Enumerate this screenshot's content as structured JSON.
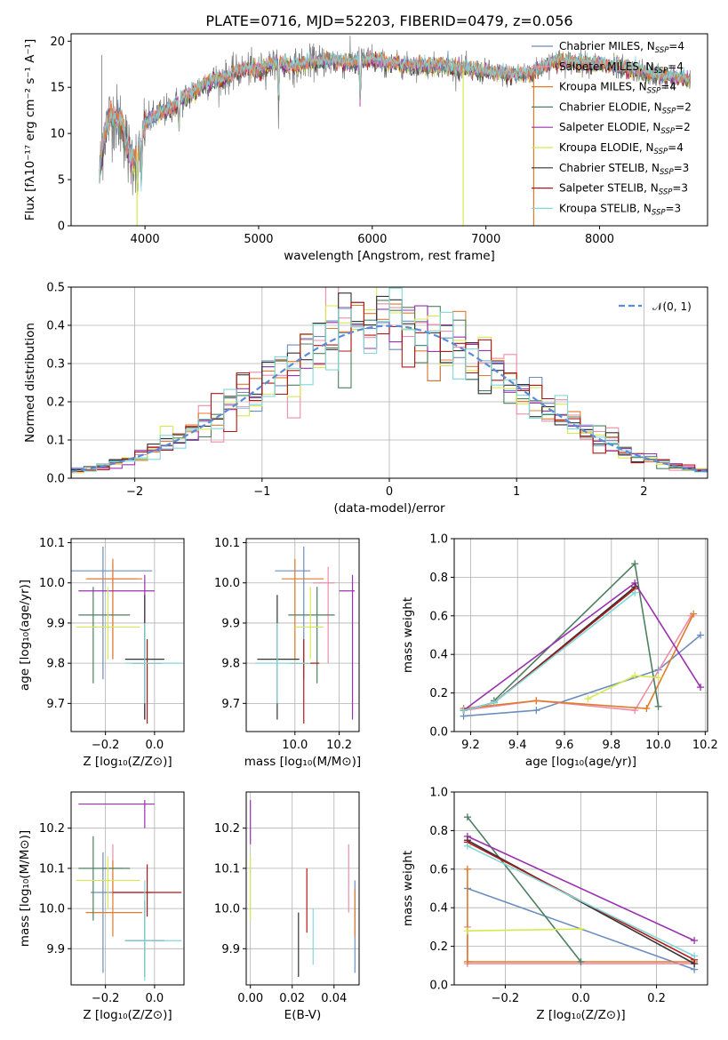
{
  "title": "PLATE=0716, MJD=52203, FIBERID=0479, z=0.056",
  "colors": {
    "Chabrier MILES": "#6c8ebf",
    "Salpeter MILES": "#ec8ea8",
    "Kroupa MILES": "#e07b2c",
    "Chabrier ELODIE": "#4c8060",
    "Salpeter ELODIE": "#9b30b0",
    "Kroupa ELODIE": "#d8e850",
    "Chabrier STELIB": "#333333",
    "Salpeter STELIB": "#b01818",
    "Kroupa STELIB": "#80d8d8"
  },
  "chart_data": [
    {
      "id": "spectrum",
      "type": "line",
      "title": "PLATE=0716, MJD=52203, FIBERID=0479, z=0.056",
      "xlabel": "wavelength [Angstrom, rest frame]",
      "ylabel": "Flux [fλ10⁻¹⁷ erg cm⁻² s⁻¹ A⁻¹]",
      "xlim": [
        3350,
        8950
      ],
      "ylim": [
        0,
        20.8
      ],
      "xticks": [
        "4000",
        "5000",
        "6000",
        "7000",
        "8000"
      ],
      "yticks": [
        "0",
        "5",
        "10",
        "15",
        "20"
      ],
      "legend_position": "upper-right",
      "legend": [
        "Chabrier MILES, N_SSP=4",
        "Salpeter MILES, N_SSP=4",
        "Kroupa MILES, N_SSP=4",
        "Chabrier ELODIE, N_SSP=2",
        "Salpeter ELODIE, N_SSP=2",
        "Kroupa ELODIE, N_SSP=4",
        "Chabrier STELIB, N_SSP=3",
        "Salpeter STELIB, N_SSP=3",
        "Kroupa STELIB, N_SSP=3"
      ],
      "continuum": {
        "x": [
          3600,
          3640,
          3700,
          3800,
          3850,
          3900,
          3950,
          4000,
          4100,
          4200,
          4300,
          4400,
          4500,
          4600,
          4700,
          4800,
          4900,
          5000,
          5100,
          5200,
          5300,
          5400,
          5500,
          5600,
          5800,
          6000,
          6200,
          6400,
          6600,
          6800,
          7000,
          7200,
          7400,
          7600,
          7800,
          8000,
          8200,
          8400,
          8600,
          8800
        ],
        "y": [
          5.5,
          10,
          12,
          11,
          8,
          7,
          8.5,
          11,
          12,
          12.5,
          13.5,
          14.2,
          15.2,
          15.8,
          16,
          16.6,
          17,
          16.8,
          17.5,
          17.6,
          17.2,
          17.6,
          17.8,
          17.9,
          17.7,
          18,
          17.5,
          17.3,
          17.4,
          17,
          16.7,
          16.3,
          16.6,
          17.9,
          17.7,
          17.5,
          17.1,
          16.6,
          16.2,
          15.8
        ]
      },
      "absorption_features": [
        {
          "x": 3933,
          "y": 3.5
        },
        {
          "x": 3968,
          "y": 4.5
        },
        {
          "x": 4300,
          "y": 10.5
        },
        {
          "x": 5175,
          "y": 13.5
        },
        {
          "x": 5893,
          "y": 13.5
        }
      ],
      "model_spikes": [
        {
          "series": "Kroupa ELODIE",
          "x": 3930,
          "y": 0
        },
        {
          "series": "Kroupa ELODIE",
          "x": 6800,
          "y": 0
        },
        {
          "series": "Kroupa MILES",
          "x": 7420,
          "y": 0
        }
      ]
    },
    {
      "id": "residuals",
      "type": "line",
      "xlabel": "(data-model)/error",
      "ylabel": "Normed distribution",
      "xlim": [
        -2.5,
        2.5
      ],
      "ylim": [
        0,
        0.5
      ],
      "xticks": [
        "−2",
        "−1",
        "0",
        "1",
        "2"
      ],
      "yticks": [
        "0.0",
        "0.1",
        "0.2",
        "0.3",
        "0.4",
        "0.5"
      ],
      "bin_width": 0.1,
      "legend_position": "upper-right",
      "legend": [
        "𝒩(0, 1)"
      ],
      "gaussian": {
        "mean": 0,
        "sigma": 1
      }
    },
    {
      "id": "age_vs_Z",
      "type": "scatter",
      "xlabel": "Z [log₁₀(Z/Z⊙)]",
      "ylabel": "age  [log₁₀(age/yr)]",
      "xlim": [
        -0.34,
        0.12
      ],
      "ylim": [
        9.63,
        10.11
      ],
      "xticks": [
        "−0.2",
        "0.0"
      ],
      "yticks": [
        "9.7",
        "9.8",
        "9.9",
        "10.0",
        "10.1"
      ],
      "points": [
        {
          "series": "Chabrier MILES",
          "x": -0.21,
          "y": 10.03,
          "xerr": [
            0.2,
            0.2
          ],
          "yerr": [
            0.27,
            0.06
          ]
        },
        {
          "series": "Salpeter MILES",
          "x": -0.17,
          "y": 10.01,
          "xerr": [
            0.1,
            0.1
          ],
          "yerr": [
            0.2,
            0.04
          ]
        },
        {
          "series": "Kroupa MILES",
          "x": -0.17,
          "y": 10.01,
          "xerr": [
            0.11,
            0.12
          ],
          "yerr": [
            0.2,
            0.05
          ]
        },
        {
          "series": "Chabrier ELODIE",
          "x": -0.25,
          "y": 9.92,
          "xerr": [
            0.06,
            0.15
          ],
          "yerr": [
            0.17,
            0.07
          ]
        },
        {
          "series": "Salpeter ELODIE",
          "x": -0.04,
          "y": 9.98,
          "xerr": [
            0.27,
            0.04
          ],
          "yerr": [
            0.32,
            0.04
          ]
        },
        {
          "series": "Kroupa ELODIE",
          "x": -0.19,
          "y": 9.89,
          "xerr": [
            0.13,
            0.13
          ],
          "yerr": [
            0.08,
            0.1
          ]
        },
        {
          "series": "Chabrier STELIB",
          "x": -0.04,
          "y": 9.81,
          "xerr": [
            0.08,
            0.08
          ],
          "yerr": [
            0.15,
            0.16
          ]
        },
        {
          "series": "Salpeter STELIB",
          "x": -0.03,
          "y": 9.8,
          "xerr": [
            0.06,
            0.06
          ],
          "yerr": [
            0.15,
            0.06
          ]
        },
        {
          "series": "Kroupa STELIB",
          "x": -0.04,
          "y": 9.8,
          "xerr": [
            0.08,
            0.15
          ],
          "yerr": [
            0.1,
            0.1
          ]
        }
      ]
    },
    {
      "id": "age_vs_mass",
      "type": "scatter",
      "xlabel": "mass [log₁₀(M/M⊙)]",
      "ylabel": "",
      "xlim": [
        9.78,
        10.29
      ],
      "ylim": [
        9.63,
        10.11
      ],
      "xticks": [
        "10.0",
        "10.2"
      ],
      "yticks": [
        "9.7",
        "9.8",
        "9.9",
        "10.0",
        "10.1"
      ],
      "points": [
        {
          "series": "Chabrier MILES",
          "x": 10.04,
          "y": 10.03,
          "xerr": [
            0.13,
            0.03
          ],
          "yerr": [
            0.27,
            0.06
          ]
        },
        {
          "series": "Salpeter MILES",
          "x": 10.15,
          "y": 10.0,
          "xerr": [
            0.07,
            0.03
          ],
          "yerr": [
            0.2,
            0.04
          ]
        },
        {
          "series": "Kroupa MILES",
          "x": 10.0,
          "y": 10.01,
          "xerr": [
            0.06,
            0.13
          ],
          "yerr": [
            0.2,
            0.05
          ]
        },
        {
          "series": "Chabrier ELODIE",
          "x": 10.1,
          "y": 9.92,
          "xerr": [
            0.13,
            0.08
          ],
          "yerr": [
            0.17,
            0.07
          ]
        },
        {
          "series": "Salpeter ELODIE",
          "x": 10.26,
          "y": 9.98,
          "xerr": [
            0.06,
            0.01
          ],
          "yerr": [
            0.32,
            0.04
          ]
        },
        {
          "series": "Kroupa ELODIE",
          "x": 10.07,
          "y": 9.89,
          "xerr": [
            0.07,
            0.06
          ],
          "yerr": [
            0.08,
            0.1
          ]
        },
        {
          "series": "Chabrier STELIB",
          "x": 9.92,
          "y": 9.81,
          "xerr": [
            0.09,
            0.1
          ],
          "yerr": [
            0.15,
            0.16
          ]
        },
        {
          "series": "Salpeter STELIB",
          "x": 10.04,
          "y": 9.8,
          "xerr": [
            0.06,
            0.07
          ],
          "yerr": [
            0.15,
            0.06
          ]
        },
        {
          "series": "Kroupa STELIB",
          "x": 9.92,
          "y": 9.8,
          "xerr": [
            0.1,
            0.15
          ],
          "yerr": [
            0.1,
            0.1
          ]
        }
      ]
    },
    {
      "id": "weight_vs_age",
      "type": "line",
      "xlabel": "age  [log₁₀(age/yr)]",
      "ylabel": "mass weight",
      "xlim": [
        9.13,
        10.21
      ],
      "ylim": [
        0,
        1
      ],
      "xticks": [
        "9.2",
        "9.4",
        "9.6",
        "9.8",
        "10.0",
        "10.2"
      ],
      "yticks": [
        "0.0",
        "0.2",
        "0.4",
        "0.6",
        "0.8",
        "1.0"
      ],
      "series": [
        {
          "name": "Chabrier MILES",
          "x": [
            9.17,
            9.48,
            10.0,
            10.18
          ],
          "y": [
            0.08,
            0.11,
            0.32,
            0.5
          ]
        },
        {
          "name": "Salpeter MILES",
          "x": [
            9.17,
            9.48,
            9.9,
            10.14
          ],
          "y": [
            0.11,
            0.16,
            0.11,
            0.6
          ]
        },
        {
          "name": "Kroupa MILES",
          "x": [
            9.17,
            9.48,
            9.95,
            10.15
          ],
          "y": [
            0.12,
            0.16,
            0.12,
            0.61
          ]
        },
        {
          "name": "Chabrier ELODIE",
          "x": [
            9.3,
            9.9,
            10.0
          ],
          "y": [
            0.16,
            0.87,
            0.13
          ]
        },
        {
          "name": "Salpeter ELODIE",
          "x": [
            9.17,
            9.9,
            10.18
          ],
          "y": [
            0.11,
            0.77,
            0.23
          ]
        },
        {
          "name": "Kroupa ELODIE",
          "x": [
            9.7,
            9.9,
            10.0
          ],
          "y": [
            0.17,
            0.29,
            0.28
          ]
        },
        {
          "name": "Chabrier STELIB",
          "x": [
            9.17,
            9.3,
            9.9
          ],
          "y": [
            0.11,
            0.15,
            0.75
          ]
        },
        {
          "name": "Salpeter STELIB",
          "x": [
            9.17,
            9.3,
            9.9
          ],
          "y": [
            0.11,
            0.15,
            0.74
          ]
        },
        {
          "name": "Kroupa STELIB",
          "x": [
            9.17,
            9.3,
            9.9
          ],
          "y": [
            0.11,
            0.15,
            0.72
          ]
        }
      ]
    },
    {
      "id": "mass_vs_Z",
      "type": "scatter",
      "xlabel": "Z [log₁₀(Z/Z⊙)]",
      "ylabel": "mass [log₁₀(M/M⊙)]",
      "xlim": [
        -0.34,
        0.12
      ],
      "ylim": [
        9.81,
        10.29
      ],
      "xticks": [
        "−0.2",
        "0.0"
      ],
      "yticks": [
        "9.9",
        "10.0",
        "10.1",
        "10.2"
      ],
      "points": [
        {
          "series": "Chabrier MILES",
          "x": -0.21,
          "y": 10.04,
          "xerr": [
            0.05,
            0.2
          ],
          "yerr": [
            0.2,
            0.1
          ]
        },
        {
          "series": "Salpeter MILES",
          "x": -0.17,
          "y": 10.1,
          "xerr": [
            0.04,
            0.04
          ],
          "yerr": [
            0.07,
            0.06
          ]
        },
        {
          "series": "Kroupa MILES",
          "x": -0.17,
          "y": 9.99,
          "xerr": [
            0.11,
            0.12
          ],
          "yerr": [
            0.06,
            0.13
          ]
        },
        {
          "series": "Chabrier ELODIE",
          "x": -0.25,
          "y": 10.1,
          "xerr": [
            0.06,
            0.15
          ],
          "yerr": [
            0.13,
            0.08
          ]
        },
        {
          "series": "Salpeter ELODIE",
          "x": -0.04,
          "y": 10.26,
          "xerr": [
            0.27,
            0.04
          ],
          "yerr": [
            0.06,
            0.01
          ]
        },
        {
          "series": "Kroupa ELODIE",
          "x": -0.19,
          "y": 10.07,
          "xerr": [
            0.13,
            0.13
          ],
          "yerr": [
            0.07,
            0.06
          ]
        },
        {
          "series": "Chabrier STELIB",
          "x": -0.04,
          "y": 9.92,
          "xerr": [
            0.08,
            0.08
          ],
          "yerr": [
            0.09,
            0.1
          ]
        },
        {
          "series": "Salpeter STELIB",
          "x": -0.03,
          "y": 10.04,
          "xerr": [
            0.14,
            0.14
          ],
          "yerr": [
            0.06,
            0.07
          ]
        },
        {
          "series": "Kroupa STELIB",
          "x": -0.04,
          "y": 9.92,
          "xerr": [
            0.08,
            0.15
          ],
          "yerr": [
            0.1,
            0.15
          ]
        }
      ]
    },
    {
      "id": "mass_vs_ebv",
      "type": "scatter",
      "xlabel": "E(B-V)",
      "ylabel": "",
      "xlim": [
        -0.002,
        0.052
      ],
      "ylim": [
        9.81,
        10.29
      ],
      "xticks": [
        "0.00",
        "0.02",
        "0.04"
      ],
      "yticks": [
        "9.9",
        "10.0",
        "10.1",
        "10.2"
      ],
      "points": [
        {
          "series": "Chabrier MILES",
          "x": 0.05,
          "y": 10.0,
          "xerr": [
            0,
            0
          ],
          "yerr": [
            0.16,
            0.07
          ]
        },
        {
          "series": "Salpeter MILES",
          "x": 0.047,
          "y": 10.08,
          "xerr": [
            0,
            0
          ],
          "yerr": [
            0.09,
            0.08
          ]
        },
        {
          "series": "Kroupa MILES",
          "x": 0.05,
          "y": 9.99,
          "xerr": [
            0,
            0
          ],
          "yerr": [
            0.06,
            0.06
          ]
        },
        {
          "series": "Salpeter ELODIE",
          "x": 0.0,
          "y": 10.23,
          "xerr": [
            0,
            0
          ],
          "yerr": [
            0.07,
            0.04
          ]
        },
        {
          "series": "Kroupa ELODIE",
          "x": 0.0,
          "y": 10.05,
          "xerr": [
            0,
            0
          ],
          "yerr": [
            0.08,
            0.08
          ]
        },
        {
          "series": "Chabrier STELIB",
          "x": 0.023,
          "y": 9.93,
          "xerr": [
            0,
            0
          ],
          "yerr": [
            0.1,
            0.06
          ]
        },
        {
          "series": "Salpeter STELIB",
          "x": 0.027,
          "y": 10.02,
          "xerr": [
            0,
            0
          ],
          "yerr": [
            0.08,
            0.08
          ]
        },
        {
          "series": "Kroupa STELIB",
          "x": 0.03,
          "y": 9.93,
          "xerr": [
            0,
            0
          ],
          "yerr": [
            0.07,
            0.07
          ]
        }
      ]
    },
    {
      "id": "weight_vs_Z",
      "type": "line",
      "xlabel": "Z [log₁₀(Z/Z⊙)]",
      "ylabel": "mass weight",
      "xlim": [
        -0.335,
        0.335
      ],
      "ylim": [
        0,
        1
      ],
      "xticks": [
        "−0.2",
        "0.0",
        "0.2"
      ],
      "yticks": [
        "0.0",
        "0.2",
        "0.4",
        "0.6",
        "0.8",
        "1.0"
      ],
      "series": [
        {
          "name": "Chabrier MILES",
          "x": [
            -0.3,
            0.3
          ],
          "y": [
            0.5,
            0.08
          ]
        },
        {
          "name": "Salpeter MILES",
          "x": [
            -0.3,
            -0.3,
            0.3
          ],
          "y": [
            0.3,
            0.11,
            0.11
          ]
        },
        {
          "name": "Kroupa MILES",
          "x": [
            -0.3,
            -0.3,
            0.3
          ],
          "y": [
            0.6,
            0.12,
            0.12
          ]
        },
        {
          "name": "Chabrier ELODIE",
          "x": [
            -0.3,
            0.0
          ],
          "y": [
            0.87,
            0.12
          ]
        },
        {
          "name": "Salpeter ELODIE",
          "x": [
            -0.3,
            0.3
          ],
          "y": [
            0.77,
            0.23
          ]
        },
        {
          "name": "Kroupa ELODIE",
          "x": [
            -0.3,
            0.0
          ],
          "y": [
            0.28,
            0.29
          ]
        },
        {
          "name": "Chabrier STELIB",
          "x": [
            -0.3,
            0.3
          ],
          "y": [
            0.75,
            0.11
          ]
        },
        {
          "name": "Salpeter STELIB",
          "x": [
            -0.3,
            0.3
          ],
          "y": [
            0.74,
            0.13
          ]
        },
        {
          "name": "Kroupa STELIB",
          "x": [
            -0.3,
            0.3
          ],
          "y": [
            0.72,
            0.15
          ]
        }
      ]
    }
  ]
}
